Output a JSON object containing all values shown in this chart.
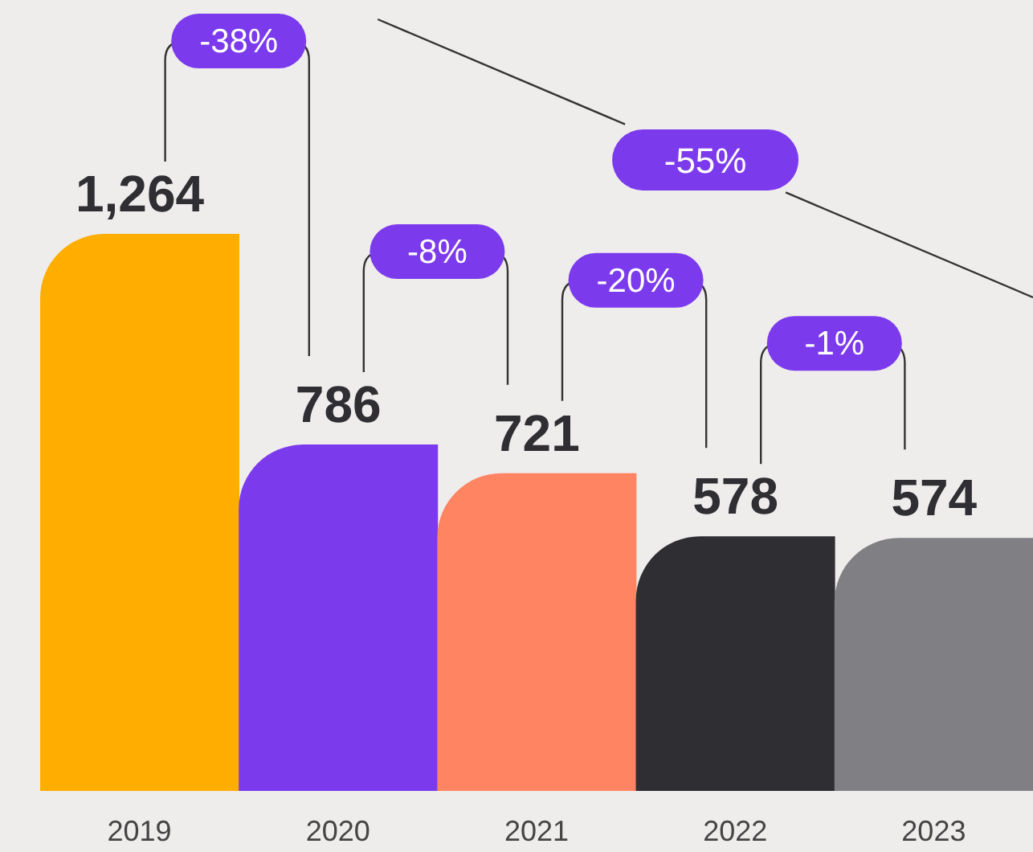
{
  "chart_data": {
    "type": "bar",
    "categories": [
      "2019",
      "2020",
      "2021",
      "2022",
      "2023"
    ],
    "values": [
      1264,
      786,
      721,
      578,
      574
    ],
    "colors": [
      "#ffae00",
      "#7c3aed",
      "#ff8462",
      "#2e2e33",
      "#808084"
    ],
    "value_labels": [
      "1,264",
      "786",
      "721",
      "578",
      "574"
    ],
    "annotations": [
      "-38%",
      "-8%",
      "-20%",
      "-1%",
      "-55%"
    ]
  }
}
